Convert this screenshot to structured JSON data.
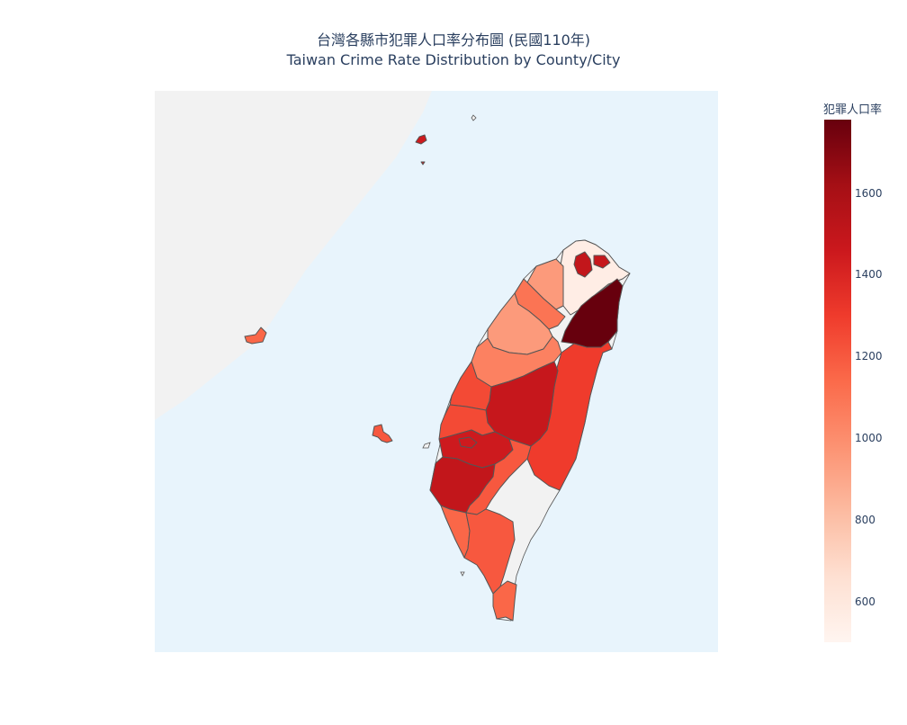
{
  "title": {
    "line1": "台灣各縣市犯罪人口率分布圖 (民國110年)",
    "line2": "Taiwan Crime Rate Distribution by County/City"
  },
  "colorbar": {
    "title": "犯罪人口率",
    "range": [
      500,
      1780
    ],
    "ticks": [
      600,
      800,
      1000,
      1200,
      1400,
      1600
    ],
    "colorscale": "Reds"
  },
  "colors": {
    "ocean": "#e8f4fc",
    "land": "#f2f2f2",
    "border": "#555555"
  },
  "regions": [
    {
      "id": "r01",
      "value": 560
    },
    {
      "id": "r02",
      "value": 1500
    },
    {
      "id": "r03",
      "value": 1480
    },
    {
      "id": "r04",
      "value": 1780
    },
    {
      "id": "r05",
      "value": 950
    },
    {
      "id": "r06",
      "value": 1100
    },
    {
      "id": "r07",
      "value": 950
    },
    {
      "id": "r08",
      "value": 1050
    },
    {
      "id": "r09",
      "value": 1250
    },
    {
      "id": "r10",
      "value": 1300
    },
    {
      "id": "r11",
      "value": 1480
    },
    {
      "id": "r12",
      "value": 1250
    },
    {
      "id": "r13",
      "value": 1450
    },
    {
      "id": "r14",
      "value": 1450
    },
    {
      "id": "r15",
      "value": 1500
    },
    {
      "id": "r16",
      "value": 1200
    },
    {
      "id": "r17",
      "value": 1150
    },
    {
      "id": "r18",
      "value": 1200
    },
    {
      "id": "r19",
      "value": 1150
    },
    {
      "id": "r20",
      "value": 1200
    },
    {
      "id": "r21",
      "value": 1150
    },
    {
      "id": "r22",
      "value": 1450
    },
    {
      "id": "r23",
      "value": 1450
    }
  ]
}
